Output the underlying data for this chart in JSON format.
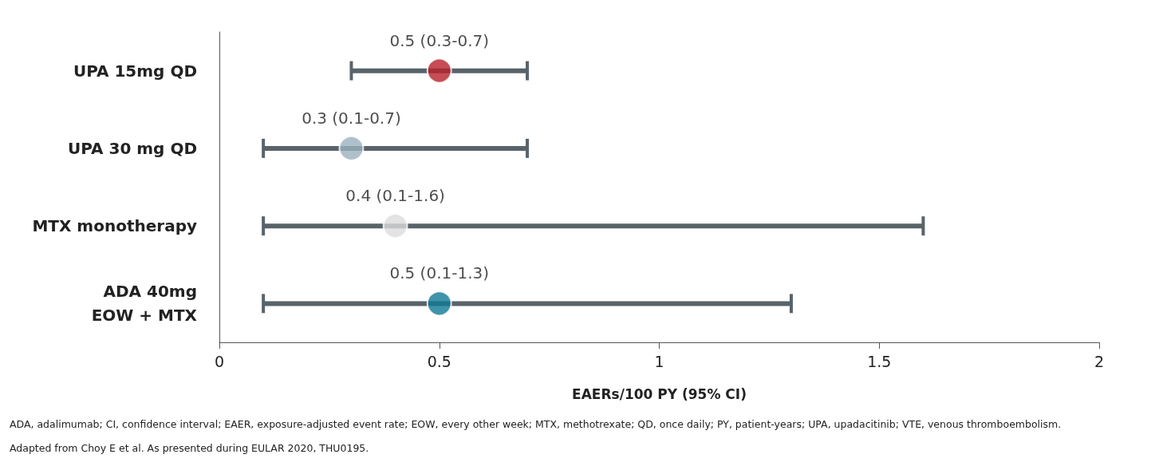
{
  "chart_data": {
    "type": "scatter",
    "orientation": "horizontal",
    "categories": [
      "UPA 15mg QD",
      "UPA 30 mg QD",
      "MTX monotherapy",
      "ADA 40mg\nEOW + MTX"
    ],
    "values": [
      0.5,
      0.3,
      0.4,
      0.5
    ],
    "errors": [
      [
        0.3,
        0.7
      ],
      [
        0.1,
        0.7
      ],
      [
        0.1,
        1.6
      ],
      [
        0.1,
        1.3
      ]
    ],
    "value_labels": [
      "0.5 (0.3-0.7)",
      "0.3 (0.1-0.7)",
      "0.4 (0.1-1.6)",
      "0.5 (0.1-1.3)"
    ],
    "colors": [
      "#b81f2a",
      "#9ab0bc",
      "#dcdcdc",
      "#0f7896"
    ],
    "xlabel": "EAERs/100 PY (95% CI)",
    "xlim": [
      0,
      2
    ],
    "xticks": [
      0,
      0.5,
      1,
      1.5,
      2
    ],
    "marker": "circle",
    "grid": false,
    "annotations": [
      "ADA, adalimumab; CI, confidence interval; EAER, exposure-adjusted event rate; EOW, every other week; MTX, methotrexate; QD, once daily; PY, patient-years; UPA, upadacitinib; VTE, venous thromboembolism.",
      "Adapted from Choy E et al. As presented during EULAR 2020, THU0195."
    ]
  }
}
